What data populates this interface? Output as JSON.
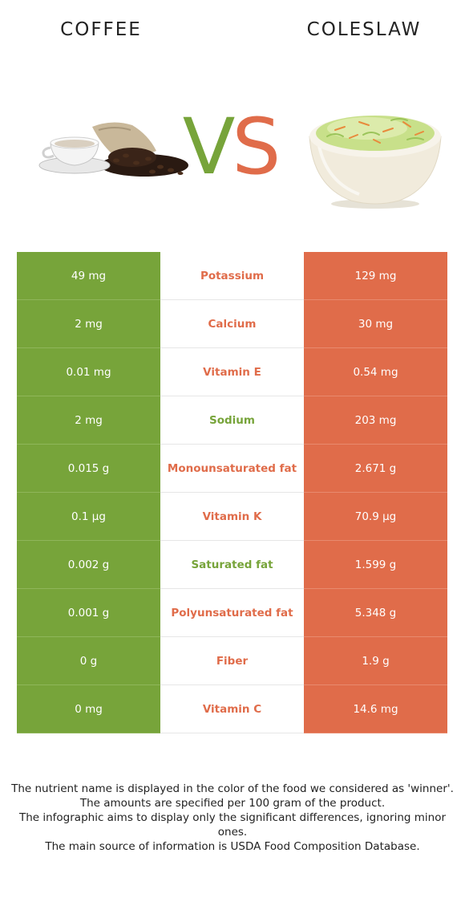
{
  "header": {
    "left_food": "COFFEE",
    "right_food": "COLESLAW",
    "vs_v": "V",
    "vs_s": "S"
  },
  "colors": {
    "left": "#77a43a",
    "right": "#e06c4a"
  },
  "images": {
    "left": "coffee-cup-and-beans-image",
    "right": "coleslaw-bowl-image"
  },
  "rows": [
    {
      "left": "49 mg",
      "nutrient": "Potassium",
      "right": "129 mg",
      "winner": "right"
    },
    {
      "left": "2 mg",
      "nutrient": "Calcium",
      "right": "30 mg",
      "winner": "right"
    },
    {
      "left": "0.01 mg",
      "nutrient": "Vitamin E",
      "right": "0.54 mg",
      "winner": "right"
    },
    {
      "left": "2 mg",
      "nutrient": "Sodium",
      "right": "203 mg",
      "winner": "left"
    },
    {
      "left": "0.015 g",
      "nutrient": "Monounsaturated fat",
      "right": "2.671 g",
      "winner": "right"
    },
    {
      "left": "0.1 µg",
      "nutrient": "Vitamin K",
      "right": "70.9 µg",
      "winner": "right"
    },
    {
      "left": "0.002 g",
      "nutrient": "Saturated fat",
      "right": "1.599 g",
      "winner": "left"
    },
    {
      "left": "0.001 g",
      "nutrient": "Polyunsaturated fat",
      "right": "5.348 g",
      "winner": "right"
    },
    {
      "left": "0 g",
      "nutrient": "Fiber",
      "right": "1.9 g",
      "winner": "right"
    },
    {
      "left": "0 mg",
      "nutrient": "Vitamin C",
      "right": "14.6 mg",
      "winner": "right"
    }
  ],
  "footer": {
    "line1": "The nutrient name is displayed in the color of the food we considered as 'winner'.",
    "line2": "The amounts are specified per 100 gram of the product.",
    "line3": "The infographic aims to display only the significant differences, ignoring minor ones.",
    "line4": "The main source of information is USDA Food Composition Database."
  }
}
